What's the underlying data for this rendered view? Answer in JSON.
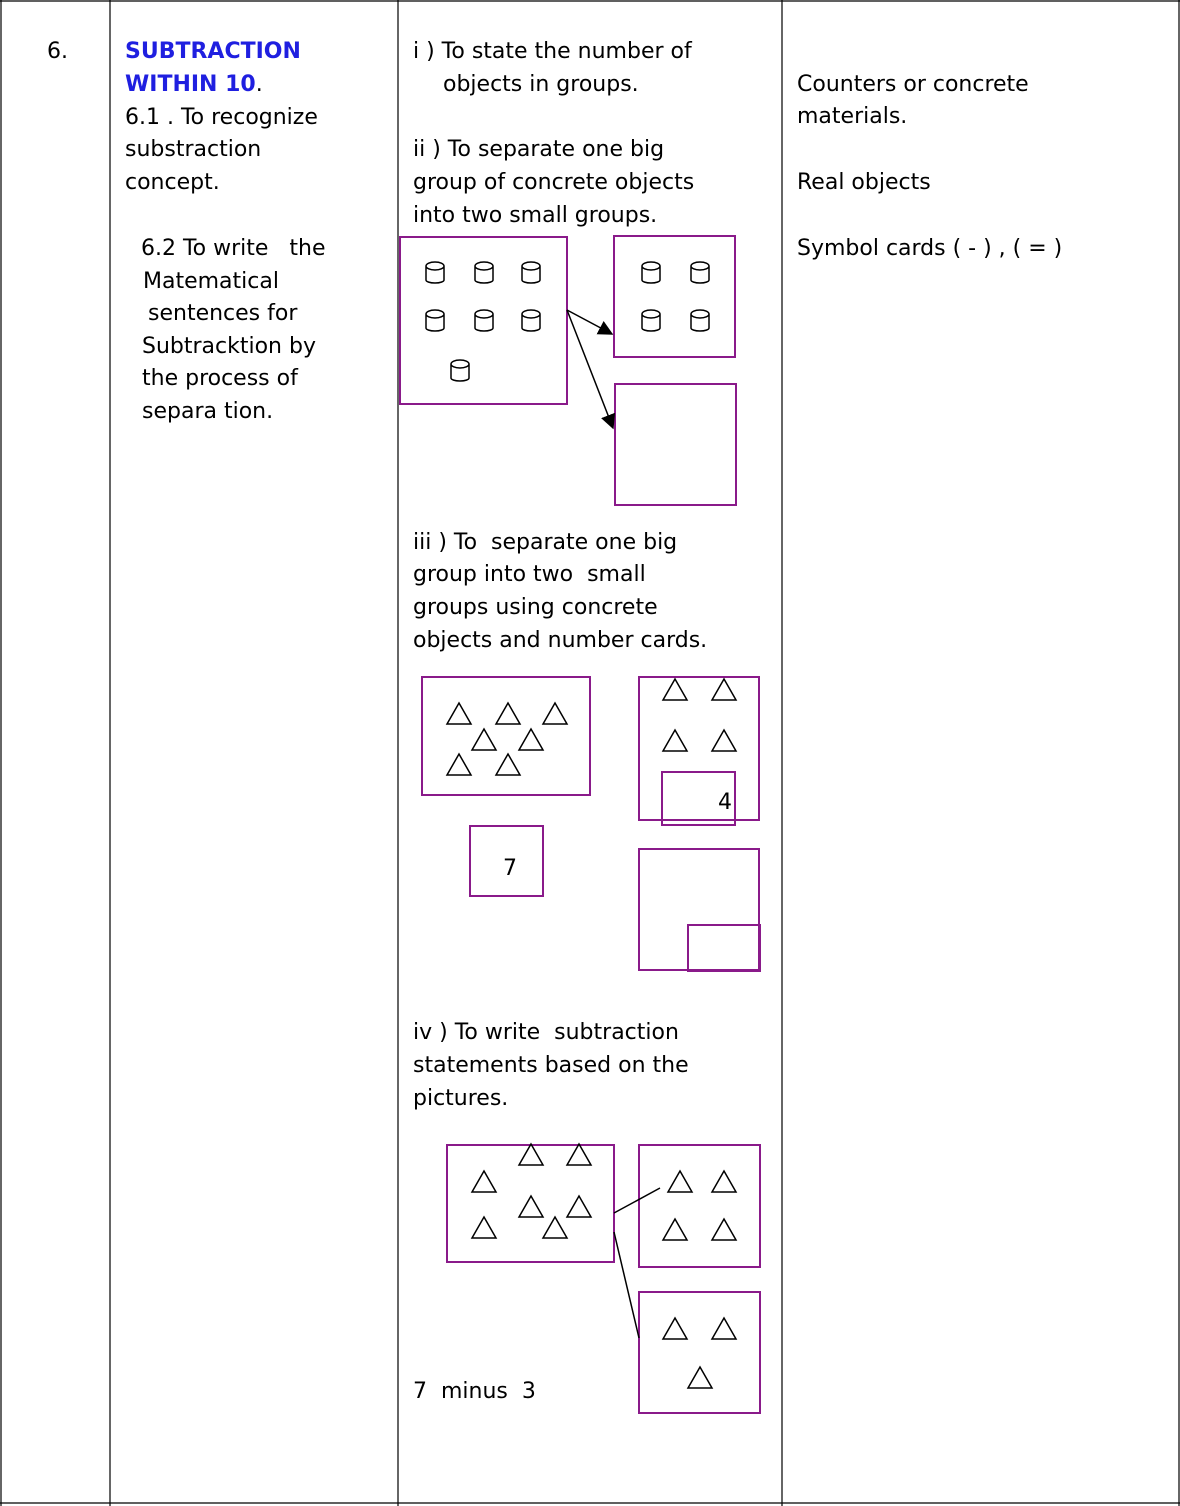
{
  "row": {
    "number": "6.",
    "topic": {
      "title": [
        "SUBTRACTION",
        "WITHIN 10"
      ],
      "title_end": ".",
      "lines": [
        "6.1 . To recognize",
        "substraction",
        "concept.",
        "6.2 To write   the",
        "Matematical",
        "sentences for",
        "Subtracktion by",
        "the process of",
        "separa tion."
      ]
    },
    "activities": {
      "step1": [
        "i ) To state the number of",
        "objects in groups."
      ],
      "step2": [
        "ii ) To separate one big",
        "group of concrete objects",
        "into two small groups."
      ],
      "step3": [
        "iii ) To  separate one big",
        "group into two  small",
        "groups using concrete",
        "objects and number cards."
      ],
      "card_total": "7",
      "card_part": "4",
      "step4": [
        "iv ) To write  subtraction",
        "statements based on the",
        "pictures."
      ],
      "statement": "7  minus  3"
    },
    "resources": [
      "Counters or concrete",
      "materials.",
      "Real objects",
      "Symbol cards ( - ) , ( = )"
    ]
  }
}
